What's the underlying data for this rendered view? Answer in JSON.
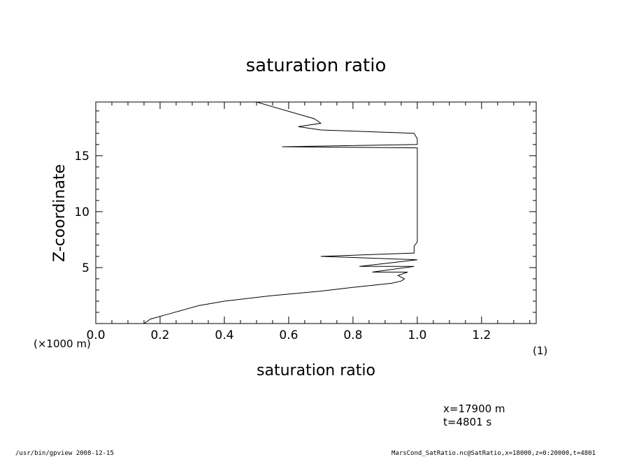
{
  "chart_data": {
    "type": "line",
    "title": "saturation ratio",
    "xlabel": "saturation ratio",
    "ylabel": "Z-coordinate",
    "xlim": [
      0.0,
      1.37
    ],
    "ylim": [
      0,
      19.8
    ],
    "x_ticks": [
      "0.0",
      "0.2",
      "0.4",
      "0.6",
      "0.8",
      "1.0",
      "1.2"
    ],
    "y_ticks": [
      "5",
      "10",
      "15"
    ],
    "x_unit": "(1)",
    "y_unit": "(×1000 m)",
    "grid": false,
    "series": [
      {
        "x": [
          0.15,
          0.17,
          0.22,
          0.27,
          0.32,
          0.4,
          0.55,
          0.7,
          0.82,
          0.92,
          0.95,
          0.96,
          0.94,
          0.97,
          0.86,
          0.99,
          0.82,
          1.0,
          0.7,
          0.99,
          0.99,
          1.0,
          1.0,
          1.0,
          1.0,
          1.0,
          1.0,
          1.0,
          1.0,
          1.0,
          0.58,
          1.0,
          1.0,
          0.99,
          0.7,
          0.63,
          0.7,
          0.68,
          0.5
        ],
        "y": [
          0.0,
          0.4,
          0.8,
          1.2,
          1.6,
          2.0,
          2.5,
          2.9,
          3.3,
          3.6,
          3.8,
          4.0,
          4.3,
          4.6,
          4.6,
          5.1,
          5.1,
          5.7,
          6.0,
          6.3,
          6.9,
          7.3,
          9.0,
          11.0,
          12.5,
          13.3,
          14.0,
          15.0,
          15.5,
          15.7,
          15.8,
          16.0,
          16.5,
          17.0,
          17.3,
          17.6,
          17.9,
          18.3,
          19.8
        ]
      }
    ]
  },
  "annotations": {
    "coords": [
      "x=17900 m",
      "t=4801 s"
    ],
    "footer_left": "/usr/bin/gpview   2008-12-15",
    "footer_right": "MarsCond_SatRatio.nc@SatRatio,x=18000,z=0:20000,t=4801"
  }
}
